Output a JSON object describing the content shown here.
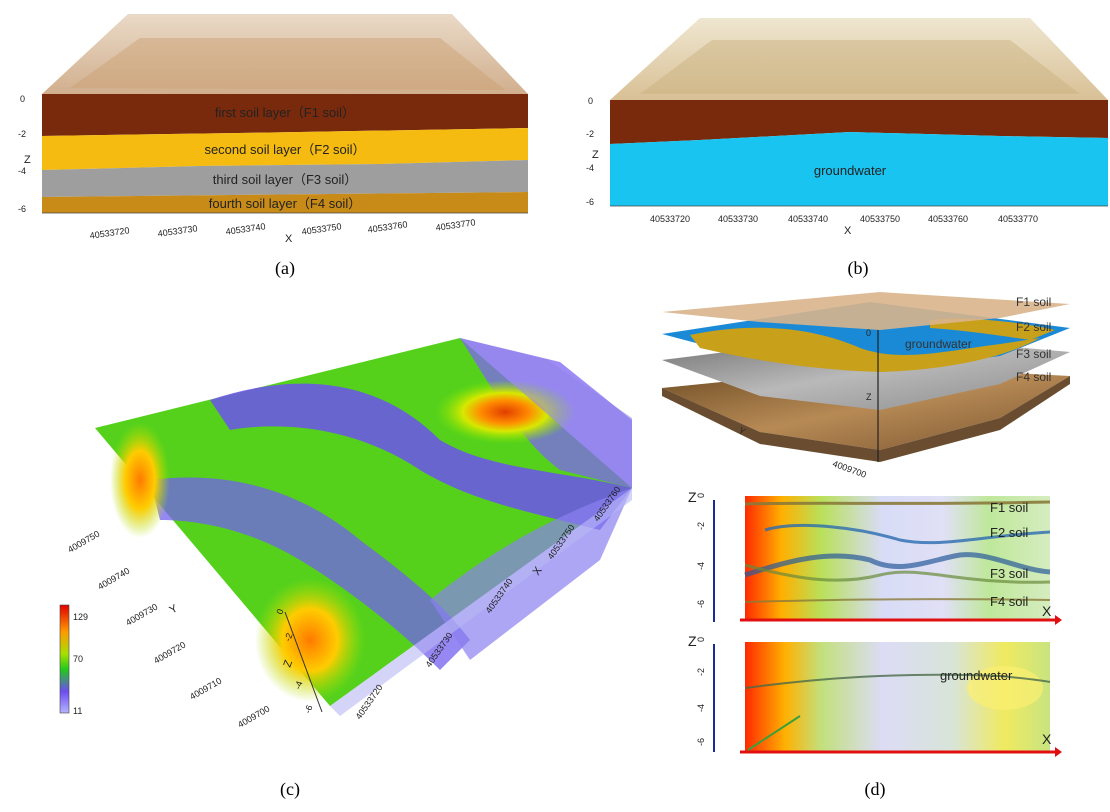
{
  "panel_a": {
    "caption": "(a)",
    "layers": [
      "first soil layer（F1 soil）",
      "second soil layer（F2 soil）",
      "third  soil layer（F3 soil）",
      "fourth soil layer（F4 soil）"
    ],
    "z_axis_title": "Z",
    "z_ticks": [
      "0",
      "-2",
      "-4",
      "-6"
    ],
    "x_axis_title": "X",
    "x_ticks": [
      "40533720",
      "40533730",
      "40533740",
      "40533750",
      "40533760",
      "40533770"
    ],
    "colors": {
      "top": "#c9a982",
      "f1": "#7a2a0c",
      "f2": "#f5bb10",
      "f3": "#9e9e9e",
      "f4": "#c98b18"
    }
  },
  "panel_b": {
    "caption": "(b)",
    "groundwater_label": "groundwater",
    "z_axis_title": "Z",
    "z_ticks": [
      "0",
      "-2",
      "-4",
      "-6"
    ],
    "x_axis_title": "X",
    "x_ticks": [
      "40533720",
      "40533730",
      "40533740",
      "40533750",
      "40533760",
      "40533770"
    ],
    "colors": {
      "top": "#d8c39a",
      "f1": "#7a2a0c",
      "water": "#19c4f0"
    }
  },
  "panel_c": {
    "caption": "(c)",
    "colorbar_ticks": [
      "129",
      "70",
      "11"
    ],
    "y_axis_title": "Y",
    "y_ticks": [
      "4009750",
      "4009740",
      "4009730",
      "4009720",
      "4009710",
      "4009700"
    ],
    "x_axis_title": "X",
    "x_ticks": [
      "40533720",
      "40533730",
      "40533740",
      "40533750",
      "40533760"
    ],
    "z_axis_title": "Z",
    "z_ticks": [
      "0",
      "-2",
      "-4",
      "-6"
    ]
  },
  "panel_d": {
    "caption": "(d)",
    "top_labels": [
      "F1 soil",
      "F2 soil",
      "groundwater",
      "F3 soil",
      "F4 soil"
    ],
    "mid_labels": [
      "F1 soil",
      "F2 soil",
      "F3 soil",
      "F4 soil"
    ],
    "mid_axis_x": "X",
    "mid_axis_z": "Z",
    "mid_z_ticks": [
      "0",
      "-2",
      "-4",
      "-6"
    ],
    "bottom_label": "groundwater",
    "bottom_axis_x": "X",
    "bottom_axis_z": "Z",
    "bottom_z_ticks": [
      "0",
      "-2",
      "-4",
      "-6"
    ],
    "top_axis_y": "Y",
    "top_axis_z": "Z",
    "top_tick": "4009700"
  }
}
